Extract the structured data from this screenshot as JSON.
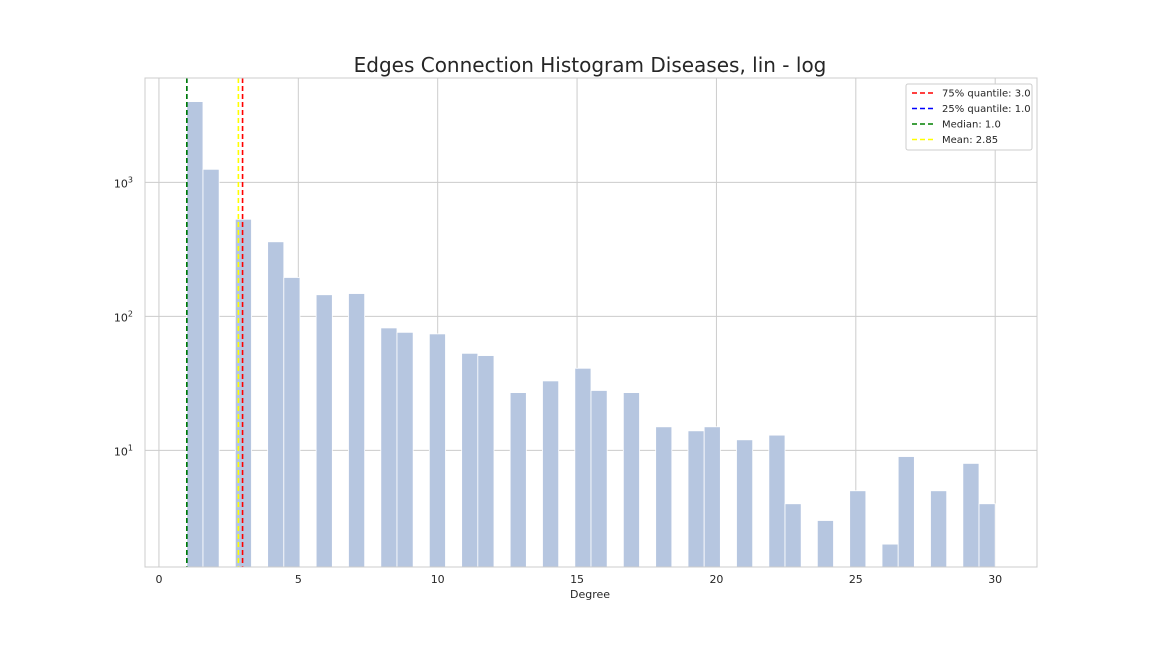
{
  "chart_data": {
    "type": "bar",
    "title": "Edges Connection Histogram Diseases, lin - log",
    "xlabel": "Degree",
    "ylabel": "",
    "xlim": [
      -0.5,
      31.5
    ],
    "ylim": [
      1.35,
      6000
    ],
    "yscale": "log",
    "grid": true,
    "x_ticks": [
      0,
      5,
      10,
      15,
      20,
      25,
      30
    ],
    "x_tick_labels": [
      "0",
      "5",
      "10",
      "15",
      "20",
      "25",
      "30"
    ],
    "y_ticks": [
      {
        "base": "10",
        "exp": "1",
        "value": 10
      },
      {
        "base": "10",
        "exp": "2",
        "value": 100
      },
      {
        "base": "10",
        "exp": "3",
        "value": 1000
      }
    ],
    "bar_color": "#b6c6e0",
    "bins": [
      {
        "x0": 1.0,
        "x1": 1.58,
        "value": 4000
      },
      {
        "x0": 1.58,
        "x1": 2.16,
        "value": 1250
      },
      {
        "x0": 2.74,
        "x1": 3.32,
        "value": 530
      },
      {
        "x0": 3.9,
        "x1": 4.48,
        "value": 360
      },
      {
        "x0": 4.48,
        "x1": 5.06,
        "value": 195
      },
      {
        "x0": 5.64,
        "x1": 6.22,
        "value": 145
      },
      {
        "x0": 6.8,
        "x1": 7.38,
        "value": 148
      },
      {
        "x0": 7.96,
        "x1": 8.54,
        "value": 82
      },
      {
        "x0": 8.54,
        "x1": 9.12,
        "value": 76
      },
      {
        "x0": 9.7,
        "x1": 10.28,
        "value": 74
      },
      {
        "x0": 10.86,
        "x1": 11.44,
        "value": 53
      },
      {
        "x0": 11.44,
        "x1": 12.02,
        "value": 51
      },
      {
        "x0": 12.6,
        "x1": 13.18,
        "value": 27
      },
      {
        "x0": 13.76,
        "x1": 14.34,
        "value": 33
      },
      {
        "x0": 14.92,
        "x1": 15.5,
        "value": 41
      },
      {
        "x0": 15.5,
        "x1": 16.08,
        "value": 28
      },
      {
        "x0": 16.66,
        "x1": 17.24,
        "value": 27
      },
      {
        "x0": 17.82,
        "x1": 18.4,
        "value": 15
      },
      {
        "x0": 18.98,
        "x1": 19.56,
        "value": 14
      },
      {
        "x0": 19.56,
        "x1": 20.14,
        "value": 15
      },
      {
        "x0": 20.72,
        "x1": 21.3,
        "value": 12
      },
      {
        "x0": 21.88,
        "x1": 22.46,
        "value": 13
      },
      {
        "x0": 22.46,
        "x1": 23.04,
        "value": 4
      },
      {
        "x0": 23.62,
        "x1": 24.2,
        "value": 3
      },
      {
        "x0": 24.78,
        "x1": 25.36,
        "value": 5
      },
      {
        "x0": 25.94,
        "x1": 26.52,
        "value": 2
      },
      {
        "x0": 26.52,
        "x1": 27.1,
        "value": 9
      },
      {
        "x0": 27.68,
        "x1": 28.26,
        "value": 5
      },
      {
        "x0": 28.84,
        "x1": 29.42,
        "value": 8
      },
      {
        "x0": 29.42,
        "x1": 30.0,
        "value": 4
      }
    ],
    "reference_lines": [
      {
        "label": "75% quantile: 3.0",
        "x": 3.0,
        "color": "#ff0000"
      },
      {
        "label": "25% quantile: 1.0",
        "x": 1.0,
        "color": "#0000ff"
      },
      {
        "label": "Median: 1.0",
        "x": 1.0,
        "color": "#008000"
      },
      {
        "label": "Mean: 2.85",
        "x": 2.85,
        "color": "#ffff00"
      }
    ],
    "legend_position": "top-right"
  }
}
